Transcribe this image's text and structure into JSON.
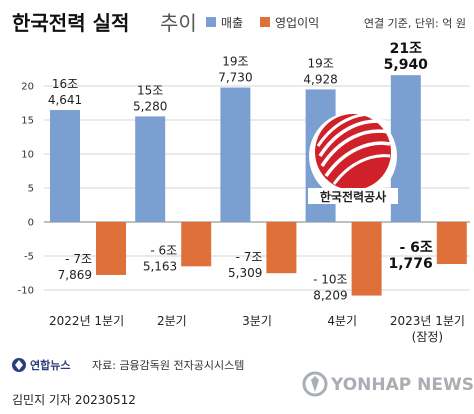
{
  "header": {
    "title_main": "한국전력 실적",
    "title_sub": "추이",
    "note": "연결 기준, 단위: 억 원"
  },
  "legend": [
    {
      "label": "매출",
      "color": "#7b9fd0"
    },
    {
      "label": "영업이익",
      "color": "#e0703a"
    }
  ],
  "chart_data": {
    "type": "bar",
    "categories": [
      "2022년 1분기",
      "2분기",
      "3분기",
      "4분기",
      "2023년 1분기"
    ],
    "category_sub": [
      "",
      "",
      "",
      "",
      "(잠정)"
    ],
    "series": [
      {
        "name": "매출",
        "values": [
          164641,
          155280,
          197730,
          194928,
          215940
        ],
        "color": "#7b9fd0"
      },
      {
        "name": "영업이익",
        "values": [
          -77869,
          -65163,
          -75309,
          -108209,
          -61776
        ],
        "color": "#e0703a"
      }
    ],
    "bar_labels": [
      {
        "revenue_top": "16조",
        "revenue_bottom": "4,641",
        "profit_top": "- 7조",
        "profit_bottom": "7,869"
      },
      {
        "revenue_top": "15조",
        "revenue_bottom": "5,280",
        "profit_top": "- 6조",
        "profit_bottom": "5,163"
      },
      {
        "revenue_top": "19조",
        "revenue_bottom": "7,730",
        "profit_top": "- 7조",
        "profit_bottom": "5,309"
      },
      {
        "revenue_top": "19조",
        "revenue_bottom": "4,928",
        "profit_top": "- 10조",
        "profit_bottom": "8,209"
      },
      {
        "revenue_top": "21조",
        "revenue_bottom": "5,940",
        "profit_top": "- 6조",
        "profit_bottom": "1,776"
      }
    ],
    "y_ticks": [
      20,
      15,
      10,
      5,
      0,
      -5,
      -10
    ],
    "y_tick_labels": [
      "20",
      "15",
      "10",
      "5",
      "0",
      "-5",
      "-10"
    ],
    "ylim": [
      -12,
      22
    ],
    "grid": true
  },
  "logo": {
    "text": "한국전력공사",
    "color": "#d0212a"
  },
  "footer": {
    "brand": "연합뉴스",
    "source": "자료: 금융감독원 전자공시시스템",
    "credit": "김민지 기자  20230512",
    "watermark": "YONHAP NEWS"
  }
}
